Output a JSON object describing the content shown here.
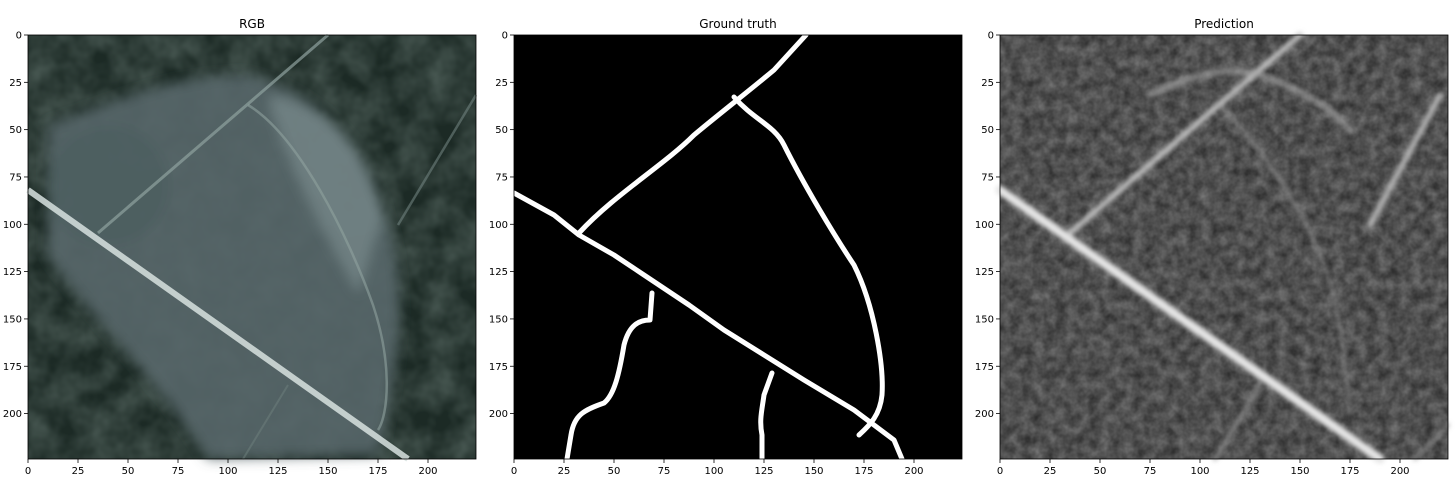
{
  "figure": {
    "panels": [
      {
        "title": "RGB",
        "image_kind": "rgb",
        "x_ticks": [
          "0",
          "25",
          "50",
          "75",
          "100",
          "125",
          "150",
          "175",
          "200"
        ],
        "y_ticks": [
          "0",
          "25",
          "50",
          "75",
          "100",
          "125",
          "150",
          "175",
          "200"
        ]
      },
      {
        "title": "Ground truth",
        "image_kind": "mask",
        "x_ticks": [
          "0",
          "25",
          "50",
          "75",
          "100",
          "125",
          "150",
          "175",
          "200"
        ],
        "y_ticks": [
          "0",
          "25",
          "50",
          "75",
          "100",
          "125",
          "150",
          "175",
          "200"
        ]
      },
      {
        "title": "Prediction",
        "image_kind": "heatmap",
        "x_ticks": [
          "0",
          "25",
          "50",
          "75",
          "100",
          "125",
          "150",
          "175",
          "200"
        ],
        "y_ticks": [
          "0",
          "25",
          "50",
          "75",
          "100",
          "125",
          "150",
          "175",
          "200"
        ]
      }
    ],
    "colors": {
      "rgb_background": "#1c2a25",
      "rgb_field": "#5d6e6d",
      "rgb_road": "#d8e2e0",
      "mask_background": "#000000",
      "mask_road": "#ffffff",
      "pred_background": "#2e2e2e",
      "pred_road": "#e6e6e6"
    }
  }
}
